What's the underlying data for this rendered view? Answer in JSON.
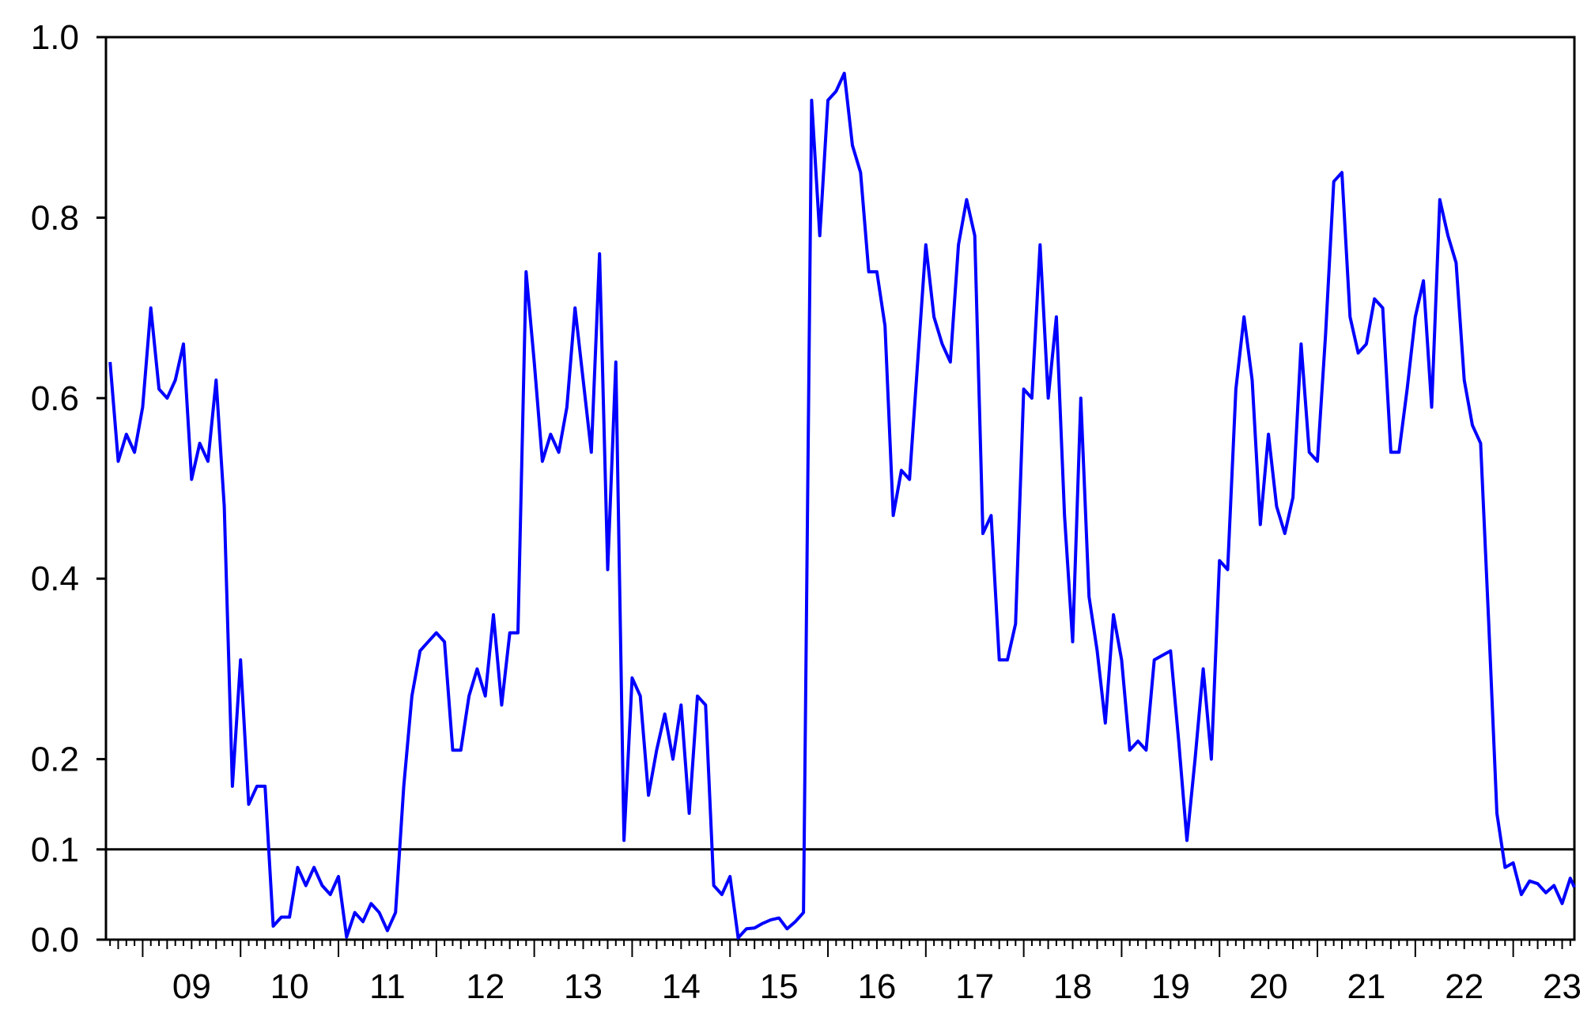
{
  "chart_data": {
    "type": "line",
    "title": "",
    "xlabel": "",
    "ylabel": "",
    "ylim": [
      0.0,
      1.0
    ],
    "xlim": [
      2008.625,
      2023.625
    ],
    "y_ticks": [
      {
        "value": 0.0,
        "label": "0.0"
      },
      {
        "value": 0.1,
        "label": "0.1"
      },
      {
        "value": 0.2,
        "label": "0.2"
      },
      {
        "value": 0.4,
        "label": "0.4"
      },
      {
        "value": 0.6,
        "label": "0.6"
      },
      {
        "value": 0.8,
        "label": "0.8"
      },
      {
        "value": 1.0,
        "label": "1.0"
      }
    ],
    "x_tick_labels": [
      "09",
      "10",
      "11",
      "12",
      "13",
      "14",
      "15",
      "16",
      "17",
      "18",
      "19",
      "20",
      "21",
      "22",
      "23"
    ],
    "reference_line": {
      "y": 0.1,
      "color": "#000000"
    },
    "grid": false,
    "legend": "none",
    "series": [
      {
        "color": "#0000ff",
        "points": [
          [
            2008.667,
            0.64
          ],
          [
            2008.75,
            0.53
          ],
          [
            2008.833,
            0.56
          ],
          [
            2008.917,
            0.54
          ],
          [
            2009.0,
            0.59
          ],
          [
            2009.083,
            0.7
          ],
          [
            2009.167,
            0.61
          ],
          [
            2009.25,
            0.6
          ],
          [
            2009.333,
            0.62
          ],
          [
            2009.417,
            0.66
          ],
          [
            2009.5,
            0.51
          ],
          [
            2009.583,
            0.55
          ],
          [
            2009.667,
            0.53
          ],
          [
            2009.75,
            0.62
          ],
          [
            2009.833,
            0.48
          ],
          [
            2009.917,
            0.17
          ],
          [
            2010.0,
            0.31
          ],
          [
            2010.083,
            0.15
          ],
          [
            2010.167,
            0.17
          ],
          [
            2010.25,
            0.17
          ],
          [
            2010.333,
            0.015
          ],
          [
            2010.417,
            0.025
          ],
          [
            2010.5,
            0.025
          ],
          [
            2010.583,
            0.08
          ],
          [
            2010.667,
            0.06
          ],
          [
            2010.75,
            0.08
          ],
          [
            2010.833,
            0.06
          ],
          [
            2010.917,
            0.05
          ],
          [
            2011.0,
            0.07
          ],
          [
            2011.083,
            0.003
          ],
          [
            2011.167,
            0.03
          ],
          [
            2011.25,
            0.02
          ],
          [
            2011.333,
            0.04
          ],
          [
            2011.417,
            0.03
          ],
          [
            2011.5,
            0.01
          ],
          [
            2011.583,
            0.03
          ],
          [
            2011.667,
            0.17
          ],
          [
            2011.75,
            0.27
          ],
          [
            2011.833,
            0.32
          ],
          [
            2011.917,
            0.33
          ],
          [
            2012.0,
            0.34
          ],
          [
            2012.083,
            0.33
          ],
          [
            2012.167,
            0.21
          ],
          [
            2012.25,
            0.21
          ],
          [
            2012.333,
            0.27
          ],
          [
            2012.417,
            0.3
          ],
          [
            2012.5,
            0.27
          ],
          [
            2012.583,
            0.36
          ],
          [
            2012.667,
            0.26
          ],
          [
            2012.75,
            0.34
          ],
          [
            2012.833,
            0.34
          ],
          [
            2012.917,
            0.74
          ],
          [
            2013.0,
            0.64
          ],
          [
            2013.083,
            0.53
          ],
          [
            2013.167,
            0.56
          ],
          [
            2013.25,
            0.54
          ],
          [
            2013.333,
            0.59
          ],
          [
            2013.417,
            0.7
          ],
          [
            2013.5,
            0.62
          ],
          [
            2013.583,
            0.54
          ],
          [
            2013.667,
            0.76
          ],
          [
            2013.75,
            0.41
          ],
          [
            2013.833,
            0.64
          ],
          [
            2013.917,
            0.11
          ],
          [
            2014.0,
            0.29
          ],
          [
            2014.083,
            0.27
          ],
          [
            2014.167,
            0.16
          ],
          [
            2014.25,
            0.21
          ],
          [
            2014.333,
            0.25
          ],
          [
            2014.417,
            0.2
          ],
          [
            2014.5,
            0.26
          ],
          [
            2014.583,
            0.14
          ],
          [
            2014.667,
            0.27
          ],
          [
            2014.75,
            0.26
          ],
          [
            2014.833,
            0.06
          ],
          [
            2014.917,
            0.05
          ],
          [
            2015.0,
            0.07
          ],
          [
            2015.083,
            0.002
          ],
          [
            2015.167,
            0.012
          ],
          [
            2015.25,
            0.013
          ],
          [
            2015.333,
            0.018
          ],
          [
            2015.417,
            0.022
          ],
          [
            2015.5,
            0.024
          ],
          [
            2015.583,
            0.012
          ],
          [
            2015.667,
            0.02
          ],
          [
            2015.75,
            0.03
          ],
          [
            2015.833,
            0.93
          ],
          [
            2015.917,
            0.78
          ],
          [
            2016.0,
            0.93
          ],
          [
            2016.083,
            0.94
          ],
          [
            2016.167,
            0.96
          ],
          [
            2016.25,
            0.88
          ],
          [
            2016.333,
            0.85
          ],
          [
            2016.417,
            0.74
          ],
          [
            2016.5,
            0.74
          ],
          [
            2016.583,
            0.68
          ],
          [
            2016.667,
            0.47
          ],
          [
            2016.75,
            0.52
          ],
          [
            2016.833,
            0.51
          ],
          [
            2016.917,
            0.64
          ],
          [
            2017.0,
            0.77
          ],
          [
            2017.083,
            0.69
          ],
          [
            2017.167,
            0.66
          ],
          [
            2017.25,
            0.64
          ],
          [
            2017.333,
            0.77
          ],
          [
            2017.417,
            0.82
          ],
          [
            2017.5,
            0.78
          ],
          [
            2017.583,
            0.45
          ],
          [
            2017.667,
            0.47
          ],
          [
            2017.75,
            0.31
          ],
          [
            2017.833,
            0.31
          ],
          [
            2017.917,
            0.35
          ],
          [
            2018.0,
            0.61
          ],
          [
            2018.083,
            0.6
          ],
          [
            2018.167,
            0.77
          ],
          [
            2018.25,
            0.6
          ],
          [
            2018.333,
            0.69
          ],
          [
            2018.417,
            0.47
          ],
          [
            2018.5,
            0.33
          ],
          [
            2018.583,
            0.6
          ],
          [
            2018.667,
            0.38
          ],
          [
            2018.75,
            0.32
          ],
          [
            2018.833,
            0.24
          ],
          [
            2018.917,
            0.36
          ],
          [
            2019.0,
            0.31
          ],
          [
            2019.083,
            0.21
          ],
          [
            2019.167,
            0.22
          ],
          [
            2019.25,
            0.21
          ],
          [
            2019.333,
            0.31
          ],
          [
            2019.417,
            0.315
          ],
          [
            2019.5,
            0.32
          ],
          [
            2019.583,
            0.22
          ],
          [
            2019.667,
            0.11
          ],
          [
            2019.75,
            0.2
          ],
          [
            2019.833,
            0.3
          ],
          [
            2019.917,
            0.2
          ],
          [
            2020.0,
            0.42
          ],
          [
            2020.083,
            0.41
          ],
          [
            2020.167,
            0.61
          ],
          [
            2020.25,
            0.69
          ],
          [
            2020.333,
            0.62
          ],
          [
            2020.417,
            0.46
          ],
          [
            2020.5,
            0.56
          ],
          [
            2020.583,
            0.48
          ],
          [
            2020.667,
            0.45
          ],
          [
            2020.75,
            0.49
          ],
          [
            2020.833,
            0.66
          ],
          [
            2020.917,
            0.54
          ],
          [
            2021.0,
            0.53
          ],
          [
            2021.083,
            0.67
          ],
          [
            2021.167,
            0.84
          ],
          [
            2021.25,
            0.85
          ],
          [
            2021.333,
            0.69
          ],
          [
            2021.417,
            0.65
          ],
          [
            2021.5,
            0.66
          ],
          [
            2021.583,
            0.71
          ],
          [
            2021.667,
            0.7
          ],
          [
            2021.75,
            0.54
          ],
          [
            2021.833,
            0.54
          ],
          [
            2021.917,
            0.61
          ],
          [
            2022.0,
            0.69
          ],
          [
            2022.083,
            0.73
          ],
          [
            2022.167,
            0.59
          ],
          [
            2022.25,
            0.82
          ],
          [
            2022.333,
            0.78
          ],
          [
            2022.417,
            0.75
          ],
          [
            2022.5,
            0.62
          ],
          [
            2022.583,
            0.57
          ],
          [
            2022.667,
            0.55
          ],
          [
            2022.75,
            0.35
          ],
          [
            2022.833,
            0.14
          ],
          [
            2022.917,
            0.08
          ],
          [
            2023.0,
            0.085
          ],
          [
            2023.083,
            0.05
          ],
          [
            2023.167,
            0.065
          ],
          [
            2023.25,
            0.062
          ],
          [
            2023.333,
            0.052
          ],
          [
            2023.417,
            0.06
          ],
          [
            2023.5,
            0.04
          ],
          [
            2023.583,
            0.068
          ],
          [
            2023.625,
            0.058
          ]
        ]
      }
    ]
  }
}
